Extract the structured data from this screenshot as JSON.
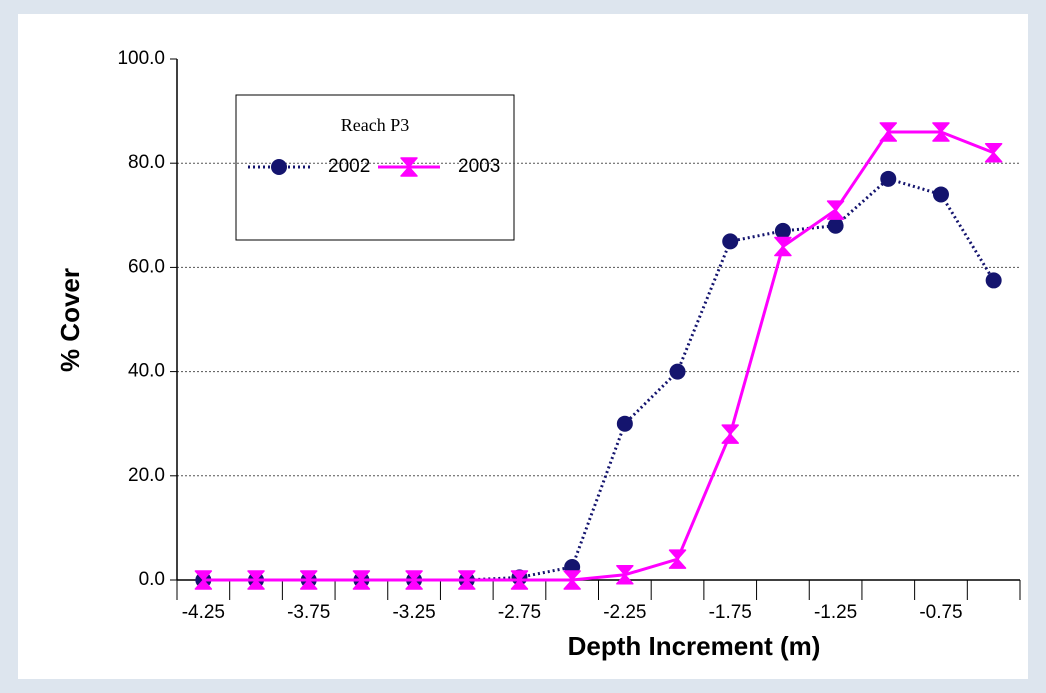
{
  "chart_data": {
    "type": "line",
    "x_label": "Depth Increment (m)",
    "y_label": "% Cover",
    "legend_title": "Reach P3",
    "categories": [
      "-4.25",
      null,
      "-3.75",
      null,
      "-3.25",
      null,
      "-2.75",
      null,
      "-2.25",
      null,
      "-1.75",
      null,
      "-1.25",
      null,
      "-0.75",
      null
    ],
    "series": [
      {
        "name": "2002",
        "color": "#14146e",
        "values": [
          0,
          0,
          0,
          0,
          0,
          0,
          0.5,
          2.5,
          30,
          40,
          65,
          67,
          68,
          77,
          74,
          57.5
        ]
      },
      {
        "name": "2003",
        "color": "#ff00ff",
        "values": [
          0,
          0,
          0,
          0,
          0,
          0,
          0,
          0,
          1,
          4,
          28,
          64,
          71,
          86,
          86,
          82
        ]
      }
    ],
    "ylim": [
      0,
      100
    ],
    "yticks": [
      {
        "value": 0,
        "label": "0.0"
      },
      {
        "value": 20,
        "label": "20.0"
      },
      {
        "value": 40,
        "label": "40.0"
      },
      {
        "value": 60,
        "label": "60.0"
      },
      {
        "value": 80,
        "label": "80.0"
      },
      {
        "value": 100,
        "label": "100.0"
      }
    ],
    "grid": true
  }
}
